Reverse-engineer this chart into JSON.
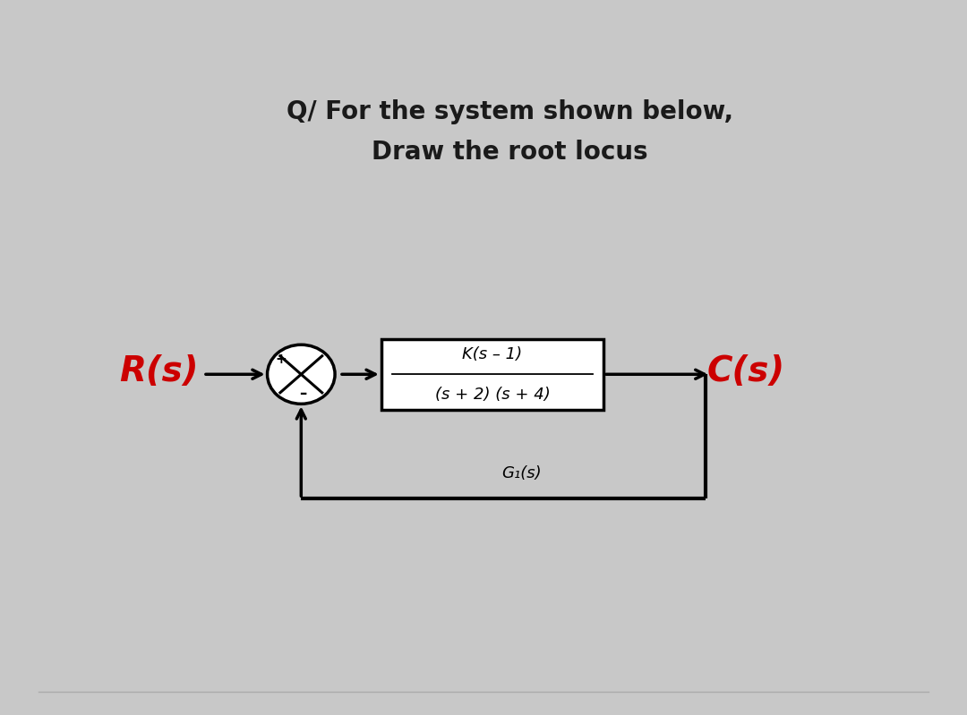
{
  "title_line1": "Q/ For the system shown below,",
  "title_line2": "Draw the root locus",
  "title_fontsize": 20,
  "title_fontweight": "bold",
  "title_color": "#1a1a1a",
  "Rs_label": "R(s)",
  "Cs_label": "C(s)",
  "signal_label_color": "#cc0000",
  "signal_label_fontsize": 28,
  "tf_numerator": "K(s – 1)",
  "tf_denominator": "(s + 2) (s + 4)",
  "tf_fontsize": 13,
  "g1s_label": "G₁(s)",
  "g1s_fontsize": 13,
  "box_color": "#000000",
  "line_color": "#000000",
  "bg_color": "#ffffff",
  "outer_bg_color": "#c8c8c8",
  "plus_label": "+",
  "minus_label": "–",
  "lw": 2.5,
  "arrow_lw": 2.5
}
